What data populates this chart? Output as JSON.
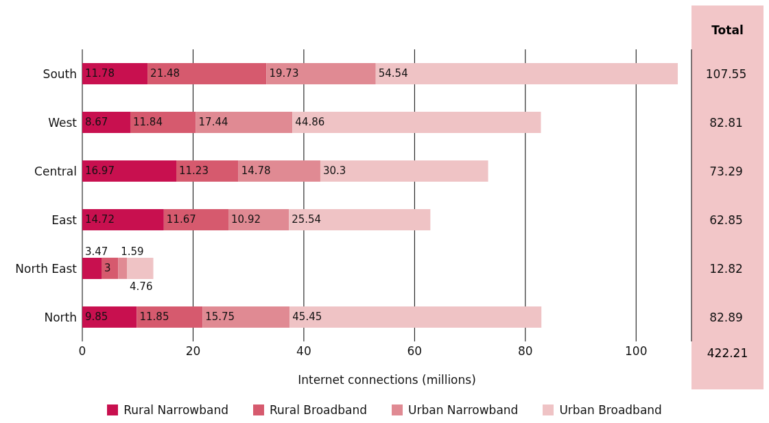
{
  "chart_data": {
    "type": "bar",
    "orientation": "horizontal",
    "stacked": true,
    "xlabel": "Internet connections (millions)",
    "categories": [
      "South",
      "West",
      "Central",
      "East",
      "North East",
      "North"
    ],
    "series": [
      {
        "name": "Rural Narrowband",
        "color": "#c8104f",
        "values": [
          11.78,
          8.67,
          16.97,
          14.72,
          3.47,
          9.85
        ]
      },
      {
        "name": "Rural Broadband",
        "color": "#d65a6e",
        "values": [
          21.48,
          11.84,
          11.23,
          11.67,
          3,
          11.85
        ]
      },
      {
        "name": "Urban Narrowband",
        "color": "#e08a93",
        "values": [
          19.73,
          17.44,
          14.78,
          10.92,
          1.59,
          15.75
        ]
      },
      {
        "name": "Urban Broadband",
        "color": "#efc3c5",
        "values": [
          54.54,
          44.86,
          30.3,
          25.54,
          4.76,
          45.45
        ]
      }
    ],
    "xlim": [
      0,
      110
    ],
    "xticks": [
      0,
      20,
      40,
      60,
      80,
      100
    ],
    "grid": "x",
    "legend": "bottom",
    "data_labels": true,
    "annotations": [
      "Total",
      "107.55",
      "82.81",
      "73.29",
      "62.85",
      "12.82",
      "82.89",
      "422.21"
    ]
  }
}
